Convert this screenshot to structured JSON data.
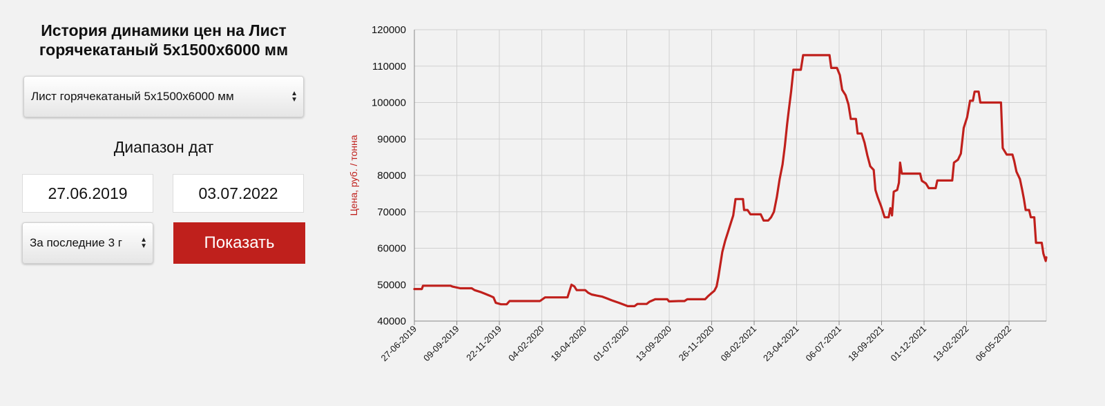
{
  "page_title": "История динамики цен на Лист горячекатаный 5х1500х6000 мм",
  "product_select": {
    "value": "Лист горячекатаный 5х1500х6000 мм"
  },
  "date_range": {
    "label": "Диапазон дат",
    "from": "27.06.2019",
    "to": "03.07.2022"
  },
  "period_select": {
    "value": "За последние 3 г"
  },
  "show_button": {
    "label": "Показать"
  },
  "colors": {
    "accent": "#bf201c",
    "line": "#c0201c",
    "grid": "#d0d0d0"
  },
  "chart_data": {
    "type": "line",
    "ylabel": "Цена, руб. / тонна",
    "xlabel": "",
    "ylim": [
      40000,
      120000
    ],
    "y_ticks": [
      40000,
      50000,
      60000,
      70000,
      80000,
      90000,
      100000,
      110000,
      120000
    ],
    "x_tick_labels": [
      "27-06-2019",
      "09-09-2019",
      "22-11-2019",
      "04-02-2020",
      "18-04-2020",
      "01-07-2020",
      "13-09-2020",
      "26-11-2020",
      "08-02-2021",
      "23-04-2021",
      "06-07-2021",
      "18-09-2021",
      "01-12-2021",
      "13-02-2022",
      "06-05-2022"
    ],
    "x_range": [
      "2019-06-27",
      "2022-07-03"
    ],
    "grid": true,
    "series": [
      {
        "points": [
          [
            "2019-06-27",
            48800
          ],
          [
            "2019-07-10",
            48800
          ],
          [
            "2019-07-12",
            49700
          ],
          [
            "2019-08-20",
            49700
          ],
          [
            "2019-08-29",
            49700
          ],
          [
            "2019-09-01",
            49500
          ],
          [
            "2019-09-15",
            49000
          ],
          [
            "2019-10-05",
            49000
          ],
          [
            "2019-10-10",
            48500
          ],
          [
            "2019-10-20",
            48000
          ],
          [
            "2019-10-28",
            47500
          ],
          [
            "2019-11-05",
            47000
          ],
          [
            "2019-11-12",
            46500
          ],
          [
            "2019-11-16",
            45000
          ],
          [
            "2019-11-25",
            44600
          ],
          [
            "2019-12-05",
            44600
          ],
          [
            "2019-12-10",
            45500
          ],
          [
            "2020-02-01",
            45500
          ],
          [
            "2020-02-10",
            46500
          ],
          [
            "2020-03-20",
            46500
          ],
          [
            "2020-03-27",
            50000
          ],
          [
            "2020-04-01",
            49500
          ],
          [
            "2020-04-05",
            48500
          ],
          [
            "2020-04-20",
            48500
          ],
          [
            "2020-04-25",
            47800
          ],
          [
            "2020-05-01",
            47300
          ],
          [
            "2020-05-10",
            47000
          ],
          [
            "2020-05-20",
            46700
          ],
          [
            "2020-05-28",
            46200
          ],
          [
            "2020-06-05",
            45700
          ],
          [
            "2020-06-18",
            45000
          ],
          [
            "2020-06-28",
            44400
          ],
          [
            "2020-07-03",
            44100
          ],
          [
            "2020-07-15",
            44100
          ],
          [
            "2020-07-20",
            44700
          ],
          [
            "2020-08-05",
            44700
          ],
          [
            "2020-08-10",
            45300
          ],
          [
            "2020-08-20",
            46000
          ],
          [
            "2020-09-10",
            46000
          ],
          [
            "2020-09-13",
            45400
          ],
          [
            "2020-09-30",
            45500
          ],
          [
            "2020-10-10",
            45500
          ],
          [
            "2020-10-15",
            46000
          ],
          [
            "2020-11-15",
            46000
          ],
          [
            "2020-11-20",
            46800
          ],
          [
            "2020-11-25",
            47500
          ],
          [
            "2020-12-01",
            48300
          ],
          [
            "2020-12-05",
            49500
          ],
          [
            "2020-12-08",
            52000
          ],
          [
            "2020-12-12",
            56000
          ],
          [
            "2020-12-15",
            59000
          ],
          [
            "2020-12-20",
            62000
          ],
          [
            "2020-12-25",
            64500
          ],
          [
            "2020-12-30",
            67000
          ],
          [
            "2021-01-03",
            69000
          ],
          [
            "2021-01-07",
            73500
          ],
          [
            "2021-01-20",
            73500
          ],
          [
            "2021-01-22",
            70500
          ],
          [
            "2021-01-28",
            70500
          ],
          [
            "2021-02-02",
            69300
          ],
          [
            "2021-02-20",
            69300
          ],
          [
            "2021-02-25",
            67600
          ],
          [
            "2021-03-05",
            67600
          ],
          [
            "2021-03-10",
            68500
          ],
          [
            "2021-03-15",
            70000
          ],
          [
            "2021-03-20",
            74000
          ],
          [
            "2021-03-25",
            79000
          ],
          [
            "2021-03-30",
            83000
          ],
          [
            "2021-04-03",
            88000
          ],
          [
            "2021-04-07",
            94000
          ],
          [
            "2021-04-10",
            98000
          ],
          [
            "2021-04-14",
            103000
          ],
          [
            "2021-04-18",
            109000
          ],
          [
            "2021-05-01",
            109000
          ],
          [
            "2021-05-05",
            113000
          ],
          [
            "2021-06-20",
            113000
          ],
          [
            "2021-06-23",
            109500
          ],
          [
            "2021-07-03",
            109500
          ],
          [
            "2021-07-08",
            107500
          ],
          [
            "2021-07-12",
            103500
          ],
          [
            "2021-07-18",
            102000
          ],
          [
            "2021-07-23",
            99500
          ],
          [
            "2021-07-27",
            95500
          ],
          [
            "2021-08-05",
            95500
          ],
          [
            "2021-08-08",
            91500
          ],
          [
            "2021-08-15",
            91500
          ],
          [
            "2021-08-20",
            89000
          ],
          [
            "2021-08-25",
            85500
          ],
          [
            "2021-08-30",
            82500
          ],
          [
            "2021-09-05",
            81500
          ],
          [
            "2021-09-08",
            76000
          ],
          [
            "2021-09-12",
            74000
          ],
          [
            "2021-09-18",
            71500
          ],
          [
            "2021-09-24",
            68500
          ],
          [
            "2021-10-01",
            68500
          ],
          [
            "2021-10-04",
            71000
          ],
          [
            "2021-10-07",
            69000
          ],
          [
            "2021-10-10",
            75500
          ],
          [
            "2021-10-16",
            76000
          ],
          [
            "2021-10-19",
            78000
          ],
          [
            "2021-10-21",
            83500
          ],
          [
            "2021-10-24",
            80500
          ],
          [
            "2021-11-25",
            80500
          ],
          [
            "2021-11-28",
            78500
          ],
          [
            "2021-12-05",
            77800
          ],
          [
            "2021-12-10",
            76500
          ],
          [
            "2021-12-22",
            76500
          ],
          [
            "2021-12-25",
            78600
          ],
          [
            "2022-01-20",
            78600
          ],
          [
            "2022-01-23",
            83500
          ],
          [
            "2022-01-30",
            84300
          ],
          [
            "2022-02-04",
            86000
          ],
          [
            "2022-02-09",
            93000
          ],
          [
            "2022-02-15",
            96000
          ],
          [
            "2022-02-20",
            100500
          ],
          [
            "2022-02-25",
            100500
          ],
          [
            "2022-02-28",
            103000
          ],
          [
            "2022-03-07",
            103000
          ],
          [
            "2022-03-10",
            100000
          ],
          [
            "2022-04-15",
            100000
          ],
          [
            "2022-04-18",
            87500
          ],
          [
            "2022-04-25",
            85700
          ],
          [
            "2022-05-05",
            85700
          ],
          [
            "2022-05-08",
            84000
          ],
          [
            "2022-05-12",
            81000
          ],
          [
            "2022-05-18",
            79000
          ],
          [
            "2022-05-22",
            76000
          ],
          [
            "2022-05-25",
            73500
          ],
          [
            "2022-05-28",
            70500
          ],
          [
            "2022-06-03",
            70500
          ],
          [
            "2022-06-06",
            68500
          ],
          [
            "2022-06-12",
            68500
          ],
          [
            "2022-06-15",
            61500
          ],
          [
            "2022-06-25",
            61500
          ],
          [
            "2022-06-28",
            58500
          ],
          [
            "2022-07-02",
            56500
          ],
          [
            "2022-07-03",
            57500
          ]
        ]
      }
    ]
  }
}
